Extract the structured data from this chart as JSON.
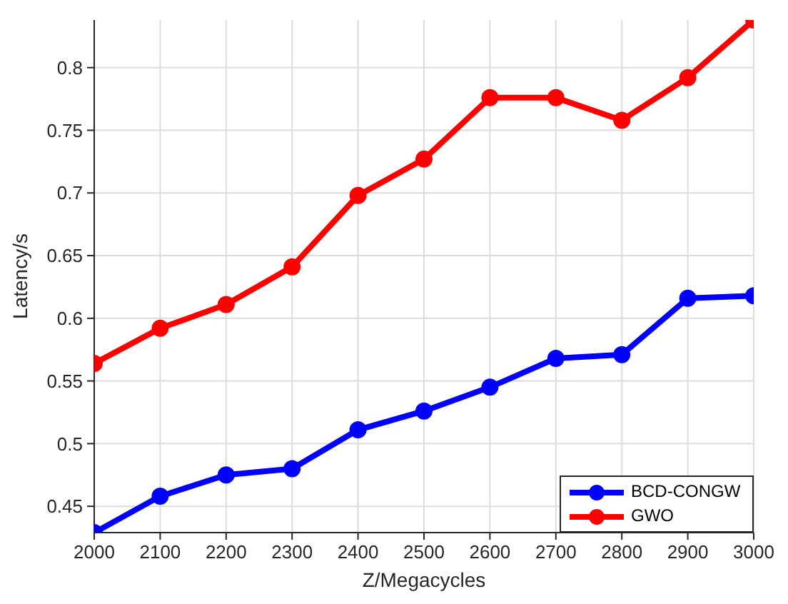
{
  "chart_data": {
    "type": "line",
    "xlabel": "Z/Megacycles",
    "ylabel": "Latency/s",
    "x": [
      2000,
      2100,
      2200,
      2300,
      2400,
      2500,
      2600,
      2700,
      2800,
      2900,
      3000
    ],
    "xlim": [
      2000,
      3000
    ],
    "xticks": [
      2000,
      2100,
      2200,
      2300,
      2400,
      2500,
      2600,
      2700,
      2800,
      2900,
      3000
    ],
    "ylim": [
      0.429,
      0.838
    ],
    "yticks": [
      0.45,
      0.5,
      0.55,
      0.6,
      0.65,
      0.7,
      0.75,
      0.8
    ],
    "series": [
      {
        "name": "BCD-CONGW",
        "color": "#0000ff",
        "values": [
          0.429,
          0.458,
          0.475,
          0.48,
          0.511,
          0.526,
          0.545,
          0.568,
          0.571,
          0.616,
          0.618
        ]
      },
      {
        "name": "GWO",
        "color": "#ff0000",
        "values": [
          0.564,
          0.592,
          0.611,
          0.641,
          0.698,
          0.727,
          0.776,
          0.776,
          0.758,
          0.792,
          0.838
        ]
      }
    ],
    "grid": true,
    "legend": "bottom right",
    "marker": "circle",
    "line_style": "solid"
  }
}
